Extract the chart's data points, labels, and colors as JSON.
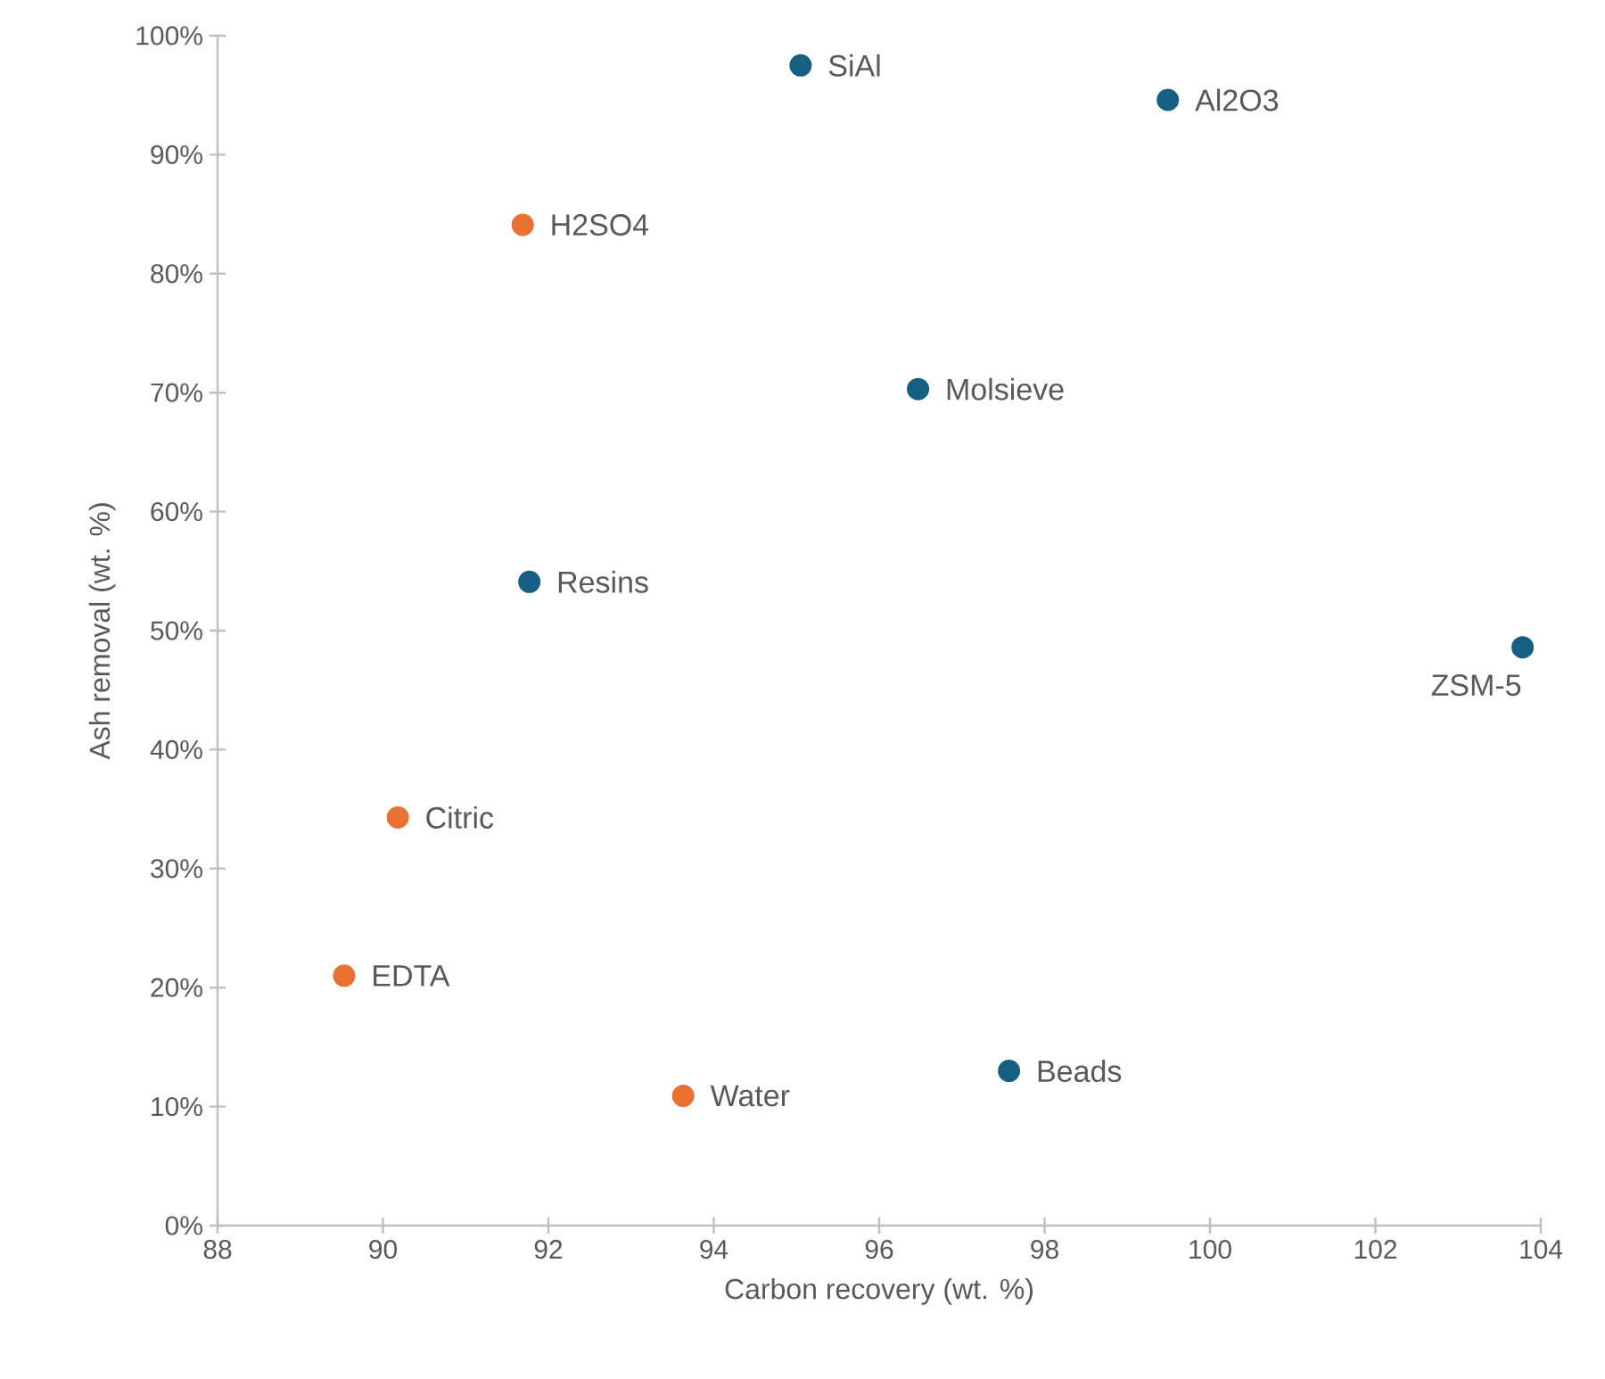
{
  "chart_data": {
    "type": "scatter",
    "xlabel": "Carbon recovery (wt. %)",
    "ylabel": "Ash removal (wt. %)",
    "marker": "circle",
    "xlim": [
      88,
      104
    ],
    "ylim": [
      0,
      100
    ],
    "xticks": [
      88,
      90,
      92,
      94,
      96,
      98,
      100,
      102,
      104
    ],
    "yticks": [
      {
        "value": 0,
        "label": "0%"
      },
      {
        "value": 10,
        "label": "10%"
      },
      {
        "value": 20,
        "label": "20%"
      },
      {
        "value": 30,
        "label": "30%"
      },
      {
        "value": 40,
        "label": "40%"
      },
      {
        "value": 50,
        "label": "50%"
      },
      {
        "value": 60,
        "label": "60%"
      },
      {
        "value": 70,
        "label": "70%"
      },
      {
        "value": 80,
        "label": "80%"
      },
      {
        "value": 90,
        "label": "90%"
      },
      {
        "value": 100,
        "label": "100%"
      }
    ],
    "series": [
      {
        "color": "#156082",
        "x": [
          95.05,
          99.49,
          96.47,
          91.77,
          103.78,
          97.57
        ],
        "values": [
          97.5,
          94.6,
          70.3,
          54.1,
          48.6,
          13.0
        ]
      },
      {
        "color": "#e97132",
        "x": [
          91.69,
          90.18,
          89.53,
          93.63
        ],
        "values": [
          84.1,
          34.3,
          21.0,
          10.9
        ]
      }
    ],
    "annotations": [
      {
        "text": "SiAl",
        "x": 95.05,
        "y": 97.5
      },
      {
        "text": "Al2O3",
        "x": 99.49,
        "y": 94.6
      },
      {
        "text": "Molsieve",
        "x": 96.47,
        "y": 70.3
      },
      {
        "text": "Resins",
        "x": 91.77,
        "y": 54.1
      },
      {
        "text": "ZSM-5",
        "x": 103.78,
        "y": 48.6
      },
      {
        "text": "Beads",
        "x": 97.57,
        "y": 13.0
      },
      {
        "text": "H2SO4",
        "x": 91.69,
        "y": 84.1
      },
      {
        "text": "Citric",
        "x": 90.18,
        "y": 34.3
      },
      {
        "text": "EDTA",
        "x": 89.53,
        "y": 21.0
      },
      {
        "text": "Water",
        "x": 93.63,
        "y": 10.9
      }
    ]
  }
}
